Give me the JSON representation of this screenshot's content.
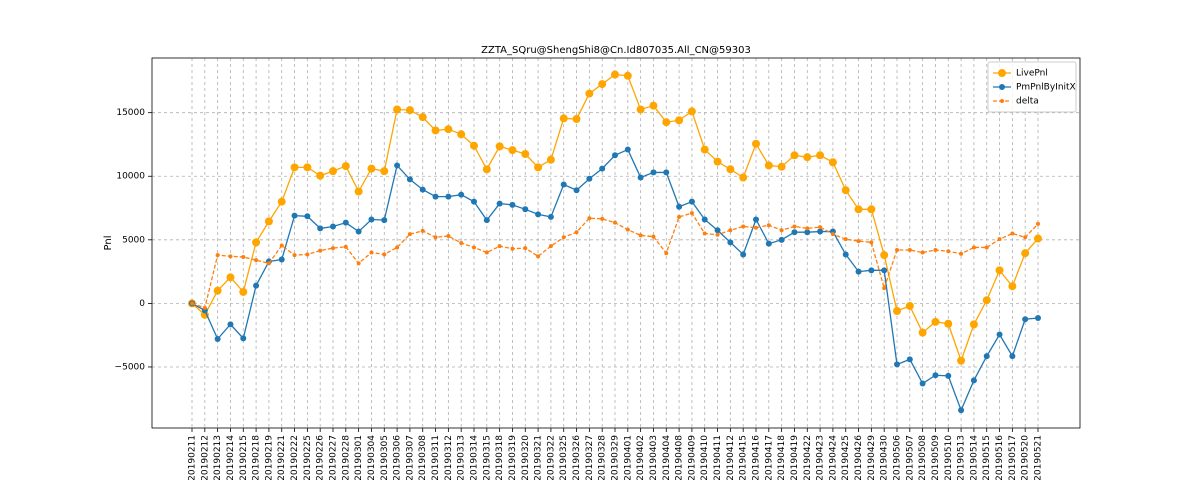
{
  "chart_data": {
    "type": "line",
    "title": "ZZTA_SQru@ShengShi8@Cn.Id807035.All_CN@59303",
    "ylabel": "Pnl",
    "categories": [
      "20190211",
      "20190212",
      "20190213",
      "20190214",
      "20190215",
      "20190218",
      "20190219",
      "20190221",
      "20190222",
      "20190225",
      "20190226",
      "20190227",
      "20190228",
      "20190301",
      "20190304",
      "20190305",
      "20190306",
      "20190307",
      "20190308",
      "20190311",
      "20190312",
      "20190313",
      "20190314",
      "20190315",
      "20190318",
      "20190319",
      "20190320",
      "20190321",
      "20190322",
      "20190325",
      "20190326",
      "20190327",
      "20190328",
      "20190329",
      "20190401",
      "20190402",
      "20190403",
      "20190404",
      "20190408",
      "20190409",
      "20190410",
      "20190411",
      "20190412",
      "20190415",
      "20190416",
      "20190417",
      "20190418",
      "20190419",
      "20190422",
      "20190423",
      "20190424",
      "20190425",
      "20190426",
      "20190429",
      "20190430",
      "20190506",
      "20190507",
      "20190508",
      "20190509",
      "20190510",
      "20190513",
      "20190514",
      "20190515",
      "20190516",
      "20190517",
      "20190520",
      "20190521"
    ],
    "series": [
      {
        "name": "LivePnl",
        "color": "#ffa500",
        "marker_size": 4,
        "dashed": false,
        "values": [
          0,
          -900,
          1000,
          2050,
          900,
          4800,
          6450,
          8000,
          10700,
          10700,
          10050,
          10400,
          10800,
          8800,
          10600,
          10400,
          15250,
          15200,
          14650,
          13600,
          13700,
          13300,
          12400,
          10550,
          12350,
          12050,
          11750,
          10700,
          11300,
          14550,
          14500,
          16500,
          17250,
          18000,
          17900,
          15250,
          15550,
          14250,
          14400,
          15100,
          12100,
          11150,
          10550,
          9900,
          12550,
          10850,
          10750,
          11650,
          11500,
          11650,
          11100,
          8900,
          7400,
          7400,
          3800,
          -600,
          -200,
          -2300,
          -1450,
          -1600,
          -4500,
          -1650,
          250,
          2600,
          1350,
          3950,
          5100
        ]
      },
      {
        "name": "PmPnlByInitX",
        "color": "#1f77b4",
        "marker_size": 3,
        "dashed": false,
        "values": [
          0,
          -550,
          -2800,
          -1650,
          -2750,
          1400,
          3300,
          3450,
          6900,
          6850,
          5900,
          6050,
          6350,
          5650,
          6600,
          6550,
          10850,
          9750,
          8950,
          8400,
          8400,
          8550,
          8000,
          6550,
          7850,
          7750,
          7400,
          7000,
          6800,
          9350,
          8900,
          9800,
          10600,
          11650,
          12100,
          9900,
          10300,
          10300,
          7600,
          8000,
          6600,
          5750,
          4800,
          3850,
          6600,
          4700,
          5000,
          5600,
          5600,
          5650,
          5650,
          3850,
          2500,
          2600,
          2600,
          -4800,
          -4400,
          -6300,
          -5650,
          -5700,
          -8400,
          -6050,
          -4150,
          -2450,
          -4150,
          -1250,
          -1150
        ]
      },
      {
        "name": "delta",
        "color": "#ff7f0e",
        "marker_size": 2,
        "dashed": true,
        "values": [
          0,
          -350,
          3800,
          3700,
          3650,
          3400,
          3150,
          4550,
          3800,
          3850,
          4150,
          4350,
          4450,
          3150,
          4000,
          3850,
          4400,
          5450,
          5700,
          5200,
          5300,
          4750,
          4400,
          4000,
          4500,
          4300,
          4350,
          3700,
          4500,
          5200,
          5600,
          6700,
          6650,
          6350,
          5800,
          5350,
          5250,
          3950,
          6800,
          7100,
          5500,
          5400,
          5750,
          6050,
          5950,
          6150,
          5750,
          6050,
          5900,
          6000,
          5450,
          5050,
          4900,
          4800,
          1200,
          4200,
          4200,
          4000,
          4200,
          4100,
          3900,
          4400,
          4400,
          5050,
          5500,
          5200,
          6250
        ]
      }
    ],
    "ylim": [
      -9800,
      19300
    ],
    "yticks": [
      {
        "value": -5000,
        "label": "−5000"
      },
      0,
      5000,
      10000,
      15000
    ],
    "grid": true,
    "legend": "upper right"
  }
}
